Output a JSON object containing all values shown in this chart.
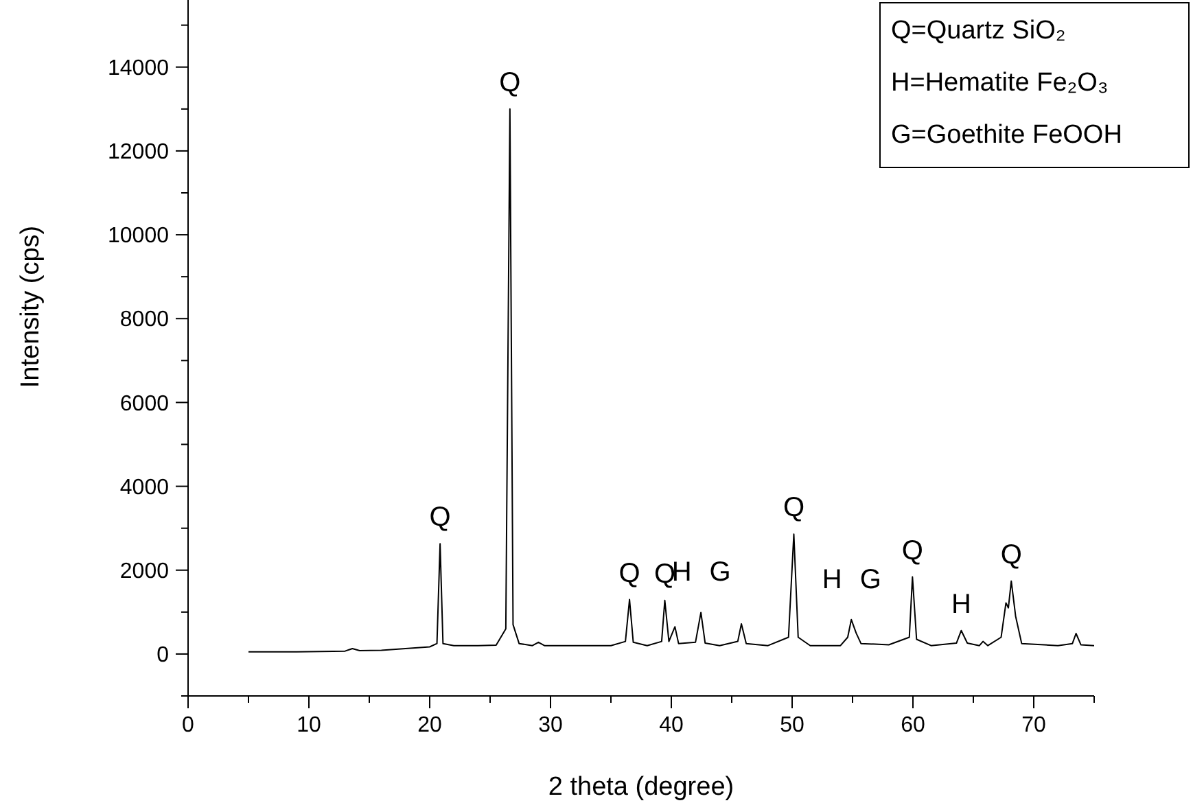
{
  "chart_data": {
    "type": "line",
    "xlabel": "2 theta (degree)",
    "ylabel": "Intensity (cps)",
    "xlim": [
      0,
      75
    ],
    "ylim": [
      -1000,
      15600
    ],
    "xticks": [
      0,
      {
        "value": 5,
        "label": null
      },
      10,
      {
        "value": 15,
        "label": null
      },
      20,
      {
        "value": 25,
        "label": null
      },
      30,
      {
        "value": 35,
        "label": null
      },
      40,
      {
        "value": 45,
        "label": null
      },
      50,
      {
        "value": 55,
        "label": null
      },
      60,
      {
        "value": 65,
        "label": null
      },
      70,
      {
        "value": 75,
        "label": null
      }
    ],
    "yticks": [
      {
        "value": -1000,
        "label": null
      },
      0,
      {
        "value": 1000,
        "label": null
      },
      2000,
      {
        "value": 3000,
        "label": null
      },
      4000,
      {
        "value": 5000,
        "label": null
      },
      6000,
      {
        "value": 7000,
        "label": null
      },
      8000,
      {
        "value": 9000,
        "label": null
      },
      10000,
      {
        "value": 11000,
        "label": null
      },
      12000,
      {
        "value": 13000,
        "label": null
      },
      14000,
      {
        "value": 15000,
        "label": null
      }
    ],
    "grid": false,
    "marker": "none",
    "line_style": "solid",
    "series": [
      {
        "color": "#000000",
        "x": [
          5,
          7,
          9,
          11,
          13,
          13.6,
          14.2,
          16,
          18,
          20,
          20.6,
          20.86,
          21.1,
          22,
          24,
          25.5,
          26.3,
          26.64,
          26.9,
          27.4,
          28.5,
          29,
          29.5,
          32,
          35,
          36.2,
          36.54,
          36.85,
          38,
          39.2,
          39.46,
          39.8,
          40.3,
          40.6,
          42,
          42.45,
          42.8,
          44,
          45.5,
          45.8,
          46.2,
          48,
          49.7,
          50.14,
          50.5,
          51.5,
          54,
          54.6,
          54.9,
          55.3,
          55.7,
          58,
          59.7,
          59.96,
          60.3,
          61.5,
          63.6,
          64,
          64.5,
          65.5,
          65.8,
          66.2,
          67.3,
          67.7,
          67.9,
          68.14,
          68.5,
          69,
          72,
          73.2,
          73.5,
          73.9,
          75
        ],
        "values": [
          50,
          50,
          50,
          60,
          70,
          130,
          80,
          90,
          130,
          170,
          250,
          2630,
          250,
          200,
          200,
          210,
          600,
          13000,
          700,
          250,
          200,
          280,
          200,
          200,
          200,
          300,
          1300,
          280,
          200,
          300,
          1280,
          300,
          650,
          250,
          280,
          990,
          260,
          200,
          300,
          720,
          250,
          200,
          400,
          2860,
          400,
          200,
          200,
          400,
          820,
          500,
          250,
          220,
          400,
          1840,
          350,
          200,
          260,
          560,
          260,
          200,
          300,
          200,
          400,
          1220,
          1100,
          1740,
          900,
          250,
          200,
          250,
          490,
          220,
          200
        ]
      }
    ],
    "annotations": [
      {
        "text": "Q",
        "x": 20.86,
        "y": 2630
      },
      {
        "text": "Q",
        "x": 26.64,
        "y": 13000
      },
      {
        "text": "Q",
        "x": 36.54,
        "y": 1300
      },
      {
        "text": "Q",
        "x": 39.46,
        "y": 1280
      },
      {
        "text": "H",
        "x": 42.45,
        "y": 990
      },
      {
        "text": "G",
        "x": 42.45,
        "y": 990
      },
      {
        "text": "Q",
        "x": 50.14,
        "y": 2860
      },
      {
        "text": "H",
        "x": 54.9,
        "y": 820
      },
      {
        "text": "G",
        "x": 54.9,
        "y": 820
      },
      {
        "text": "Q",
        "x": 59.96,
        "y": 1840
      },
      {
        "text": "H",
        "x": 64,
        "y": 560
      },
      {
        "text": "Q",
        "x": 68.14,
        "y": 1740
      },
      "Q=Quartz SiO₂",
      "H=Hematite Fe₂O₃",
      "G=Goethite FeOOH"
    ]
  }
}
